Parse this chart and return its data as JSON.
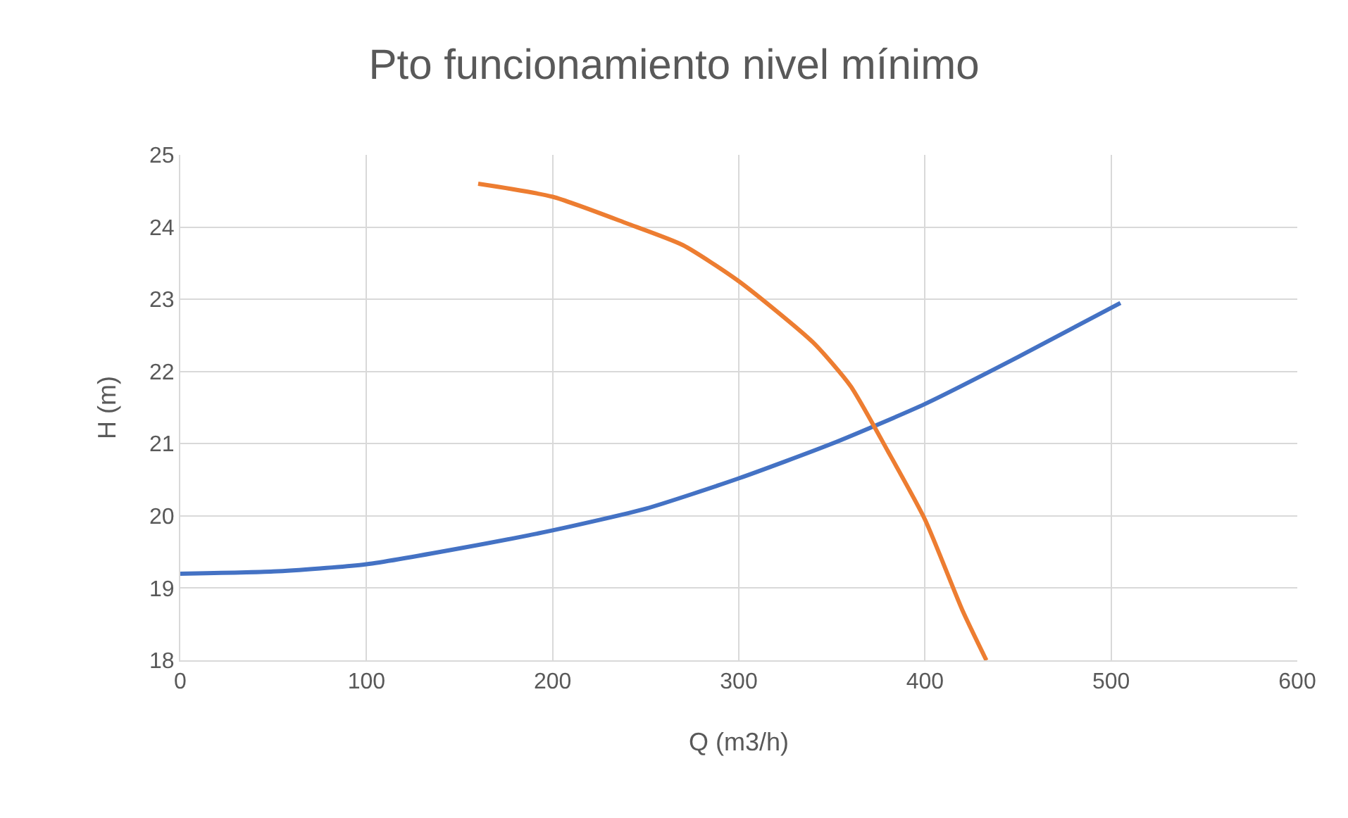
{
  "chart_data": {
    "type": "line",
    "title": "Pto funcionamiento nivel mínimo",
    "xlabel": "Q (m3/h)",
    "ylabel": "H (m)",
    "xlim": [
      0,
      600
    ],
    "xticks": [
      0,
      100,
      200,
      300,
      400,
      500,
      600
    ],
    "ylim": [
      18,
      25
    ],
    "yticks": [
      18,
      19,
      20,
      21,
      22,
      23,
      24,
      25
    ],
    "grid": true,
    "marker": "none",
    "line_style": "solid",
    "series": [
      {
        "color": "#4472c4",
        "x": [
          0,
          50,
          100,
          150,
          200,
          250,
          300,
          350,
          400,
          450,
          505
        ],
        "values": [
          19.2,
          19.23,
          19.33,
          19.55,
          19.8,
          20.1,
          20.52,
          21.0,
          21.55,
          22.2,
          22.95
        ]
      },
      {
        "color": "#ed7d31",
        "x": [
          160,
          200,
          240,
          270,
          300,
          340,
          360,
          380,
          400,
          420,
          433
        ],
        "values": [
          24.6,
          24.42,
          24.05,
          23.75,
          23.25,
          22.4,
          21.8,
          20.9,
          19.95,
          18.7,
          18.0
        ]
      }
    ]
  }
}
